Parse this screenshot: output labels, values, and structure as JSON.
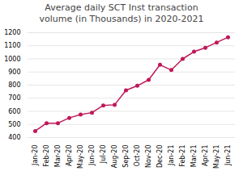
{
  "chart_data": {
    "type": "line",
    "title": "Average daily SCT Inst transaction\nvolume (in Thousands) in 2020-2021",
    "categories": [
      "Jan-20",
      "Feb-20",
      "Mar-20",
      "Apr-20",
      "May-20",
      "Jun-20",
      "Jul-20",
      "Aug-20",
      "Sep-20",
      "Oct-20",
      "Nov-20",
      "Dec-20",
      "Jan-21",
      "Feb-21",
      "Mar-21",
      "Apr-21",
      "May-21",
      "Jun-21"
    ],
    "values": [
      450,
      510,
      510,
      550,
      575,
      590,
      645,
      650,
      760,
      795,
      840,
      955,
      915,
      1000,
      1055,
      1085,
      1125,
      1165
    ],
    "color": "#c0185a",
    "marker": "circle",
    "ylim": [
      400,
      1200
    ],
    "yticks": [
      400,
      500,
      600,
      700,
      800,
      900,
      1000,
      1100,
      1200
    ],
    "grid": true
  }
}
